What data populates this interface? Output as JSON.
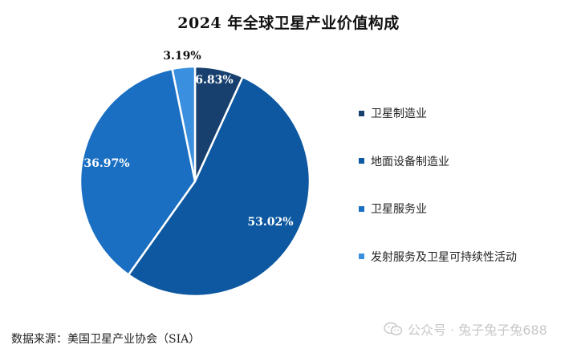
{
  "chart_data": {
    "type": "pie",
    "title": "2024 年全球卫星产业价值构成",
    "slices": [
      {
        "name": "卫星制造业",
        "value": 6.83,
        "label": "6.83%",
        "color": "#17406f"
      },
      {
        "name": "地面设备制造业",
        "value": 53.02,
        "label": "53.02%",
        "color": "#0d58a0"
      },
      {
        "name": "卫星服务业",
        "value": 36.97,
        "label": "36.97%",
        "color": "#1a6fc3"
      },
      {
        "name": "发射服务及卫星可持续性活动",
        "value": 3.19,
        "label": "3.19%",
        "color": "#3a8fde"
      }
    ],
    "start_angle_deg": 0,
    "direction": "clockwise",
    "legend_position": "right"
  },
  "source": "数据来源：美国卫星产业协会（SIA）",
  "watermark": "公众号 · 兔子兔子兔688"
}
